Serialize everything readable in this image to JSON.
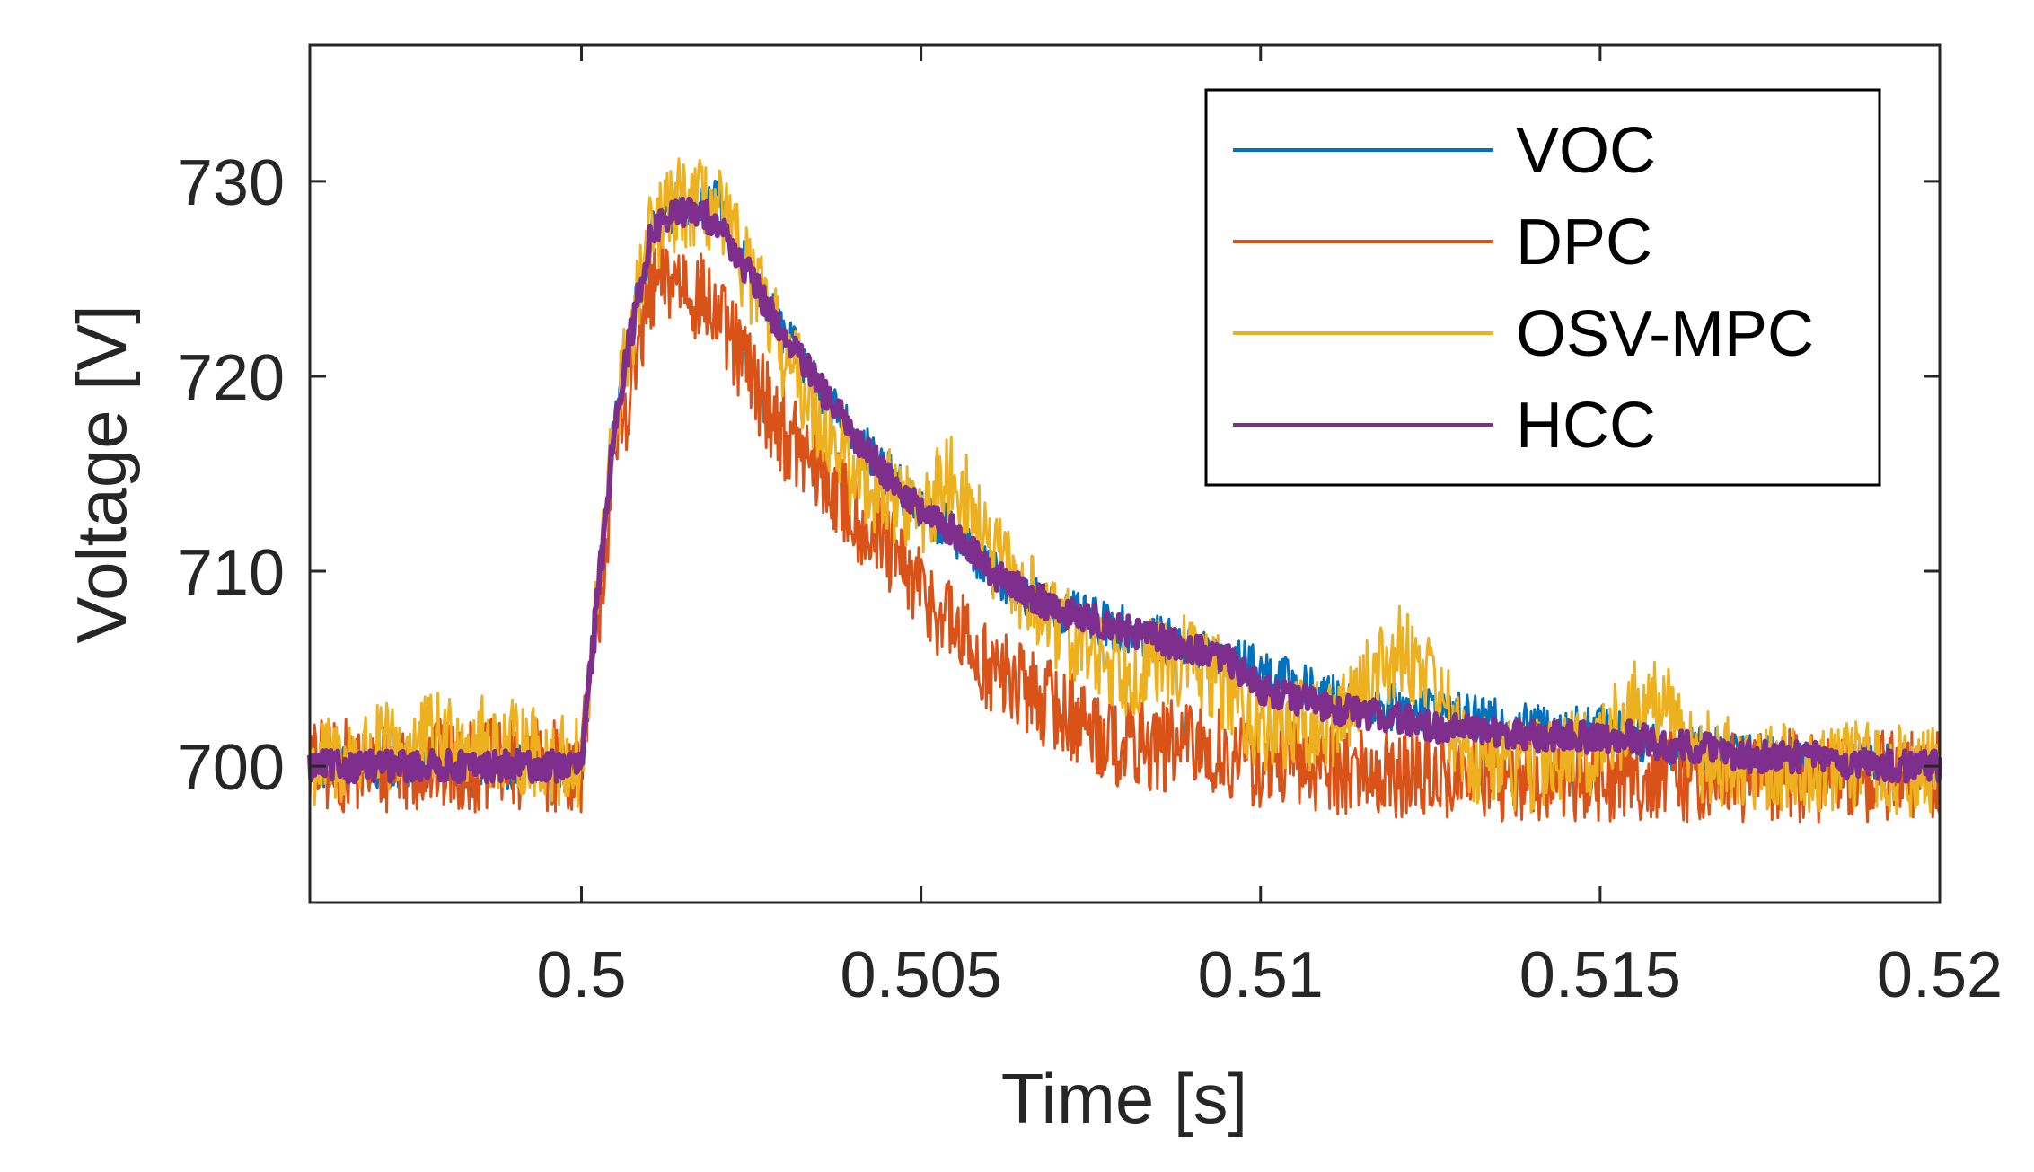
{
  "chart_data": {
    "type": "line",
    "title": "",
    "xlabel": "Time [s]",
    "ylabel": "Voltage [V]",
    "xlim": [
      0.496,
      0.52
    ],
    "ylim": [
      693,
      737
    ],
    "xticks": [
      0.5,
      0.505,
      0.51,
      0.515,
      0.52
    ],
    "xtick_labels": [
      "0.5",
      "0.505",
      "0.51",
      "0.515",
      "0.52"
    ],
    "yticks": [
      700,
      710,
      720,
      730
    ],
    "ytick_labels": [
      "700",
      "710",
      "720",
      "730"
    ],
    "grid": false,
    "legend_position": "top-right",
    "x": [
      0.496,
      0.498,
      0.499,
      0.5,
      0.5005,
      0.501,
      0.5012,
      0.5015,
      0.502,
      0.5025,
      0.503,
      0.504,
      0.5045,
      0.505,
      0.5055,
      0.506,
      0.507,
      0.508,
      0.509,
      0.5095,
      0.51,
      0.511,
      0.512,
      0.5125,
      0.513,
      0.514,
      0.515,
      0.5155,
      0.516,
      0.5165,
      0.517,
      0.518,
      0.519,
      0.52
    ],
    "series": [
      {
        "name": "VOC",
        "color": "#0072BD",
        "noise": 1.2,
        "values": [
          700,
          700,
          700,
          700,
          718,
          727,
          728,
          729,
          729,
          725,
          722,
          717,
          715,
          713,
          712,
          710,
          708,
          707,
          706,
          705.5,
          705,
          703.5,
          703,
          703,
          702.5,
          702,
          702,
          701.5,
          701,
          701,
          700.5,
          700.5,
          700,
          700
        ]
      },
      {
        "name": "DPC",
        "color": "#D95319",
        "noise": 2.4,
        "values": [
          700,
          700,
          700,
          700,
          716,
          724,
          725,
          725,
          723,
          720,
          717,
          713,
          711,
          709,
          707,
          705,
          703,
          701,
          701,
          700.5,
          700,
          700,
          699.5,
          699.5,
          699.5,
          699.5,
          699.5,
          699.5,
          699.5,
          699.5,
          699.5,
          699.5,
          699.5,
          699.5
        ]
      },
      {
        "name": "OSV-MPC",
        "color": "#EDB120",
        "noise": 2.4,
        "values": [
          700,
          701.5,
          701,
          700,
          718,
          727,
          728,
          729,
          728.5,
          725,
          721,
          715,
          714,
          713,
          715,
          711,
          707,
          705,
          705.5,
          704,
          702,
          702,
          706,
          705,
          700.5,
          700,
          701,
          703,
          703,
          700.5,
          700,
          700,
          700,
          699.5
        ]
      },
      {
        "name": "HCC",
        "color": "#7E2F8E",
        "noise": 0.8,
        "values": [
          700,
          700,
          700,
          700,
          718,
          727,
          728,
          728.5,
          728,
          725,
          722,
          717,
          715,
          713,
          712,
          710,
          708,
          707,
          706,
          705.5,
          704,
          703,
          702.5,
          702,
          702,
          701.5,
          701.5,
          701.5,
          701,
          701,
          700.5,
          700.5,
          700,
          700
        ]
      }
    ]
  }
}
